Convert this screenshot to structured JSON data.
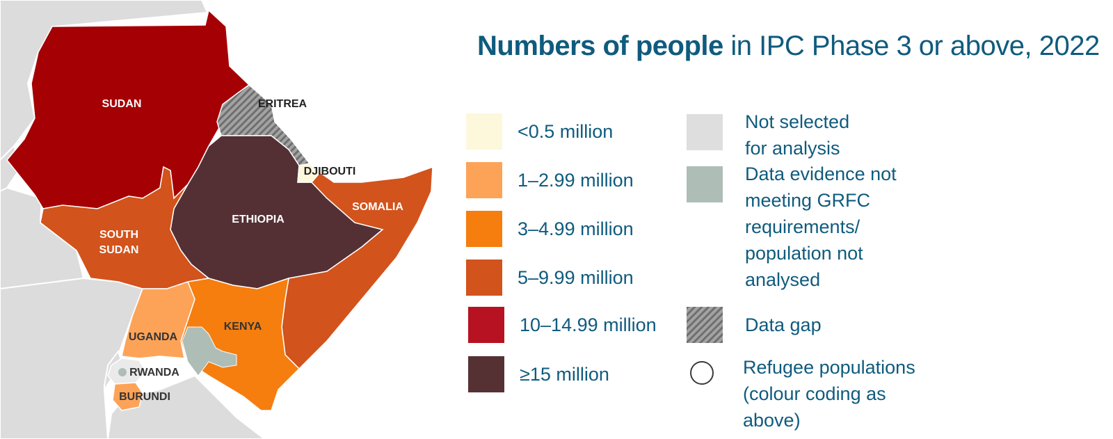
{
  "title": {
    "bold": "Numbers of people",
    "rest": " in IPC Phase 3 or above, 2022"
  },
  "colors": {
    "lt_0_5": "#fdf7dc",
    "r1_2_99": "#fda358",
    "r3_4_99": "#f57e0f",
    "r5_9_99": "#d2531c",
    "r10_14_99": "#b71221",
    "ge15": "#563134",
    "not_selected": "#dedede",
    "data_evidence": "#aebdb6",
    "data_gap": "#8c8c8c",
    "title_text": "#0f5b7e"
  },
  "legend": {
    "phase_categories": [
      {
        "label": "<0.5 million",
        "color": "#fdf7dc"
      },
      {
        "label": "1–2.99 million",
        "color": "#fda358"
      },
      {
        "label": "3–4.99 million",
        "color": "#f57e0f"
      },
      {
        "label": "5–9.99 million",
        "color": "#d2531c"
      },
      {
        "label": "10–14.99 million",
        "color": "#b71221"
      },
      {
        "label": "≥15 million",
        "color": "#563134"
      }
    ],
    "other_categories": [
      {
        "lines": [
          "Not selected",
          "for analysis"
        ],
        "swatch": "not-selected"
      },
      {
        "lines": [
          "Data evidence not",
          "meeting GRFC",
          "requirements/",
          "population not",
          "analysed"
        ],
        "swatch": "data-evidence"
      },
      {
        "lines": [
          "Data gap"
        ],
        "swatch": "hatched"
      },
      {
        "lines": [
          "Refugee populations",
          "(colour coding as",
          "above)"
        ],
        "swatch": "circle"
      }
    ]
  },
  "map": {
    "countries": [
      {
        "name": "SUDAN",
        "category": "10–14.99 million"
      },
      {
        "name": "ERITREA",
        "category": "Data gap"
      },
      {
        "name": "DJIBOUTI",
        "category": "<0.5 million"
      },
      {
        "name": "ETHIOPIA",
        "category": "≥15 million"
      },
      {
        "name": "SOMALIA",
        "category": "5–9.99 million"
      },
      {
        "name": "SOUTH SUDAN",
        "lines": [
          "SOUTH",
          "SUDAN"
        ],
        "category": "5–9.99 million"
      },
      {
        "name": "KENYA",
        "category": "3–4.99 million"
      },
      {
        "name": "UGANDA",
        "category": "1–2.99 million"
      },
      {
        "name": "RWANDA",
        "category": "Not selected for analysis"
      },
      {
        "name": "BURUNDI",
        "category": "1–2.99 million"
      }
    ]
  }
}
